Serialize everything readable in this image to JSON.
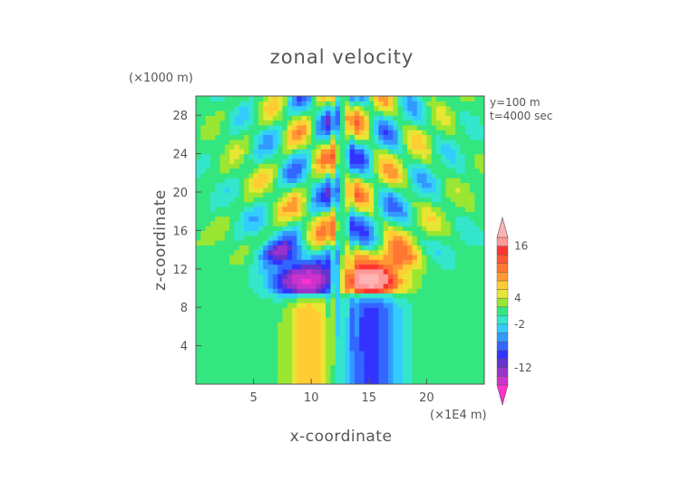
{
  "chart_data": {
    "type": "heatmap",
    "title": "zonal velocity",
    "xlabel": "x-coordinate",
    "ylabel": "z-coordinate",
    "x_unit": "(×1E4 m)",
    "y_unit": "(×1000 m)",
    "xlim": [
      0,
      25
    ],
    "ylim": [
      0,
      30
    ],
    "x_ticks": [
      5,
      10,
      15,
      20
    ],
    "y_ticks": [
      4,
      8,
      12,
      16,
      20,
      24,
      28
    ],
    "annotations": [
      "y=100 m",
      "t=4000 sec"
    ],
    "colorbar": {
      "levels": [
        -20,
        -16,
        -12,
        -10,
        -8,
        -6,
        -4,
        -2,
        0,
        2,
        4,
        6,
        8,
        10,
        12,
        14,
        16,
        20
      ],
      "colors": [
        "#ff33cc",
        "#cc33cc",
        "#9933cc",
        "#6633cc",
        "#3333ff",
        "#3366ff",
        "#3399ff",
        "#33ccff",
        "#33e6cc",
        "#33e680",
        "#99e633",
        "#e6e633",
        "#ffcc33",
        "#ff9933",
        "#ff7733",
        "#ff5533",
        "#ff3333",
        "#ff9999",
        "#ffb3b3"
      ],
      "tick_labels": [
        "16",
        "4",
        "-2",
        "-12"
      ],
      "tick_values": [
        16,
        4,
        -2,
        -12
      ]
    },
    "grid": false,
    "legend": "colorbar right"
  }
}
